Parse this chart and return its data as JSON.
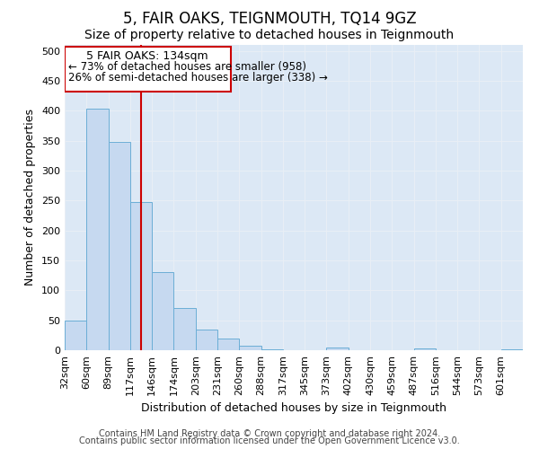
{
  "title": "5, FAIR OAKS, TEIGNMOUTH, TQ14 9GZ",
  "subtitle": "Size of property relative to detached houses in Teignmouth",
  "xlabel": "Distribution of detached houses by size in Teignmouth",
  "ylabel": "Number of detached properties",
  "bin_labels": [
    "32sqm",
    "60sqm",
    "89sqm",
    "117sqm",
    "146sqm",
    "174sqm",
    "203sqm",
    "231sqm",
    "260sqm",
    "288sqm",
    "317sqm",
    "345sqm",
    "373sqm",
    "402sqm",
    "430sqm",
    "459sqm",
    "487sqm",
    "516sqm",
    "544sqm",
    "573sqm",
    "601sqm"
  ],
  "bar_values": [
    50,
    403,
    348,
    247,
    130,
    70,
    35,
    20,
    7,
    2,
    0,
    0,
    5,
    0,
    0,
    0,
    3,
    0,
    0,
    0,
    2
  ],
  "bar_color": "#c6d9f0",
  "bar_edge_color": "#6baed6",
  "red_line_index": 3.5,
  "red_line_color": "#cc0000",
  "annotation_box_color": "#cc0000",
  "annotation_text_line1": "5 FAIR OAKS: 134sqm",
  "annotation_text_line2": "← 73% of detached houses are smaller (958)",
  "annotation_text_line3": "26% of semi-detached houses are larger (338) →",
  "ylim": [
    0,
    510
  ],
  "yticks": [
    0,
    50,
    100,
    150,
    200,
    250,
    300,
    350,
    400,
    450,
    500
  ],
  "footer_line1": "Contains HM Land Registry data © Crown copyright and database right 2024.",
  "footer_line2": "Contains public sector information licensed under the Open Government Licence v3.0.",
  "plot_background": "#dce8f5",
  "grid_color": "#e8eef5",
  "title_fontsize": 12,
  "subtitle_fontsize": 10,
  "axis_label_fontsize": 9,
  "tick_fontsize": 8,
  "footer_fontsize": 7
}
